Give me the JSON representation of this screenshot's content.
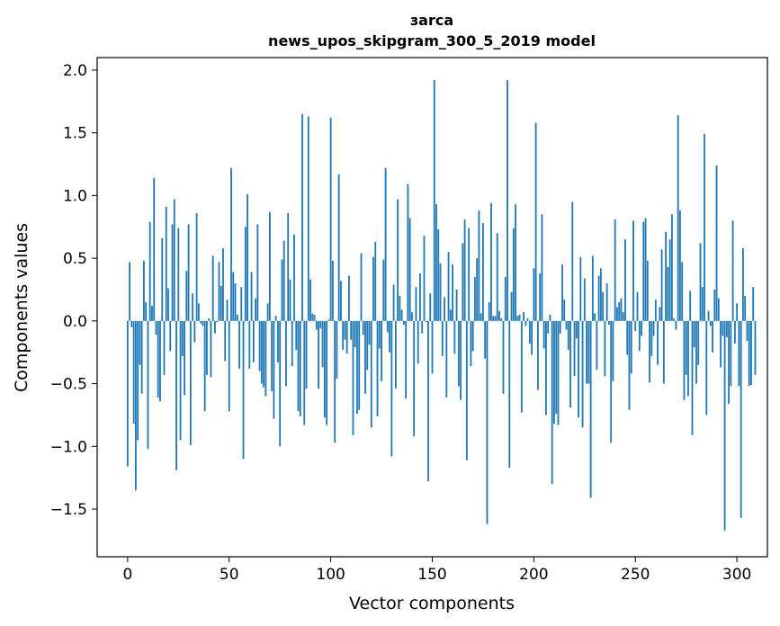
{
  "chart_data": {
    "type": "bar",
    "title_line1": "зarca",
    "title_line2": "news_upos_skipgram_300_5_2019 model",
    "xlabel": "Vector components",
    "ylabel": "Components values",
    "xlim": [
      -15,
      315
    ],
    "ylim": [
      -1.88,
      2.1
    ],
    "x_ticks": [
      0,
      50,
      100,
      150,
      200,
      250,
      300
    ],
    "x_tick_labels": [
      "0",
      "50",
      "100",
      "150",
      "200",
      "250",
      "300"
    ],
    "y_ticks": [
      -1.5,
      -1.0,
      -0.5,
      0.0,
      0.5,
      1.0,
      1.5,
      2.0
    ],
    "y_tick_labels": [
      "−1.5",
      "−1.0",
      "−0.5",
      "0.0",
      "0.5",
      "1.0",
      "1.5",
      "2.0"
    ],
    "bar_color": "#1f77b4",
    "grid": false,
    "values": [
      -1.16,
      0.47,
      -0.05,
      -0.82,
      -1.35,
      -0.95,
      -0.35,
      -0.58,
      0.48,
      0.15,
      -1.02,
      0.79,
      0.12,
      1.14,
      -0.11,
      -0.61,
      -0.64,
      0.66,
      -0.43,
      0.91,
      0.26,
      -0.24,
      0.77,
      0.97,
      -1.19,
      0.74,
      -0.95,
      -0.28,
      -0.59,
      0.4,
      0.77,
      -0.99,
      0.22,
      -0.17,
      0.86,
      0.14,
      -0.02,
      -0.04,
      -0.72,
      -0.43,
      0.02,
      -0.45,
      0.52,
      -0.1,
      -0.01,
      0.47,
      0.28,
      0.58,
      -0.32,
      0.17,
      -0.72,
      1.22,
      0.39,
      0.3,
      0.05,
      -0.38,
      0.27,
      -1.1,
      0.75,
      1.01,
      -0.38,
      0.39,
      -0.33,
      0.18,
      0.77,
      -0.4,
      -0.5,
      -0.53,
      -0.6,
      0.14,
      0.87,
      -0.56,
      -0.78,
      0.04,
      -0.33,
      -1.0,
      0.49,
      0.64,
      -0.52,
      0.86,
      0.33,
      -0.36,
      0.69,
      -0.23,
      -0.72,
      -0.76,
      1.65,
      -0.83,
      -0.54,
      1.63,
      0.33,
      0.06,
      0.05,
      -0.07,
      -0.54,
      -0.06,
      -0.37,
      -0.77,
      -0.83,
      0.01,
      1.62,
      0.48,
      -0.97,
      -0.46,
      1.17,
      0.32,
      -0.23,
      -0.15,
      -0.26,
      0.36,
      -0.15,
      -0.91,
      -0.21,
      -0.74,
      -0.71,
      0.54,
      -0.11,
      -0.58,
      -0.39,
      -0.19,
      -0.85,
      0.51,
      0.63,
      -0.76,
      -0.22,
      -0.48,
      0.49,
      1.22,
      -0.09,
      -0.25,
      -1.08,
      0.29,
      -0.54,
      0.97,
      0.2,
      0.09,
      -0.03,
      -0.62,
      1.09,
      0.82,
      0.07,
      -0.92,
      0.27,
      -0.34,
      0.38,
      -0.1,
      0.68,
      -0.01,
      -1.28,
      0.22,
      -0.42,
      1.92,
      0.93,
      0.73,
      0.46,
      -0.28,
      0.19,
      -0.61,
      0.55,
      0.09,
      0.45,
      -0.26,
      0.25,
      -0.52,
      -0.63,
      0.62,
      0.81,
      -1.11,
      0.74,
      -0.36,
      -0.24,
      0.35,
      0.5,
      0.88,
      0.06,
      0.78,
      -0.3,
      -1.62,
      0.15,
      0.94,
      0.04,
      0.04,
      0.7,
      0.08,
      0.02,
      -0.58,
      0.35,
      1.92,
      -1.17,
      0.23,
      0.74,
      0.93,
      0.04,
      0.05,
      -0.73,
      0.07,
      -0.04,
      0.02,
      -0.18,
      -0.27,
      0.42,
      1.58,
      -0.55,
      0.38,
      0.85,
      -0.22,
      -0.75,
      -0.1,
      0.05,
      -1.3,
      -0.82,
      -0.74,
      -0.83,
      -0.1,
      0.45,
      0.17,
      -0.07,
      -0.23,
      -0.69,
      0.95,
      -0.44,
      -0.14,
      -0.77,
      0.51,
      -0.85,
      0.34,
      -0.5,
      -0.5,
      -1.41,
      0.52,
      0.06,
      -0.39,
      0.36,
      0.42,
      0.23,
      -0.44,
      0.3,
      -0.03,
      -0.97,
      -0.48,
      0.81,
      0.11,
      0.15,
      0.18,
      0.07,
      0.65,
      -0.27,
      -0.71,
      -0.42,
      0.8,
      -0.08,
      0.23,
      -0.24,
      -0.12,
      0.79,
      0.82,
      0.48,
      -0.49,
      -0.28,
      -0.12,
      0.17,
      -0.35,
      0.11,
      0.57,
      -0.5,
      0.71,
      0.43,
      0.65,
      0.85,
      0.02,
      -0.07,
      1.64,
      0.88,
      0.47,
      -0.63,
      -0.43,
      -0.6,
      0.24,
      -0.91,
      -0.21,
      -0.5,
      -0.35,
      0.62,
      0.27,
      1.49,
      -0.75,
      0.08,
      -0.04,
      -0.25,
      0.25,
      1.24,
      0.18,
      -0.37,
      -0.12,
      -1.67,
      -0.13,
      -0.66,
      -0.52,
      0.8,
      -0.18,
      0.14,
      -0.52,
      -1.57,
      0.58,
      0.2,
      -0.16,
      -0.52,
      -0.51,
      0.27,
      -0.43
    ]
  }
}
